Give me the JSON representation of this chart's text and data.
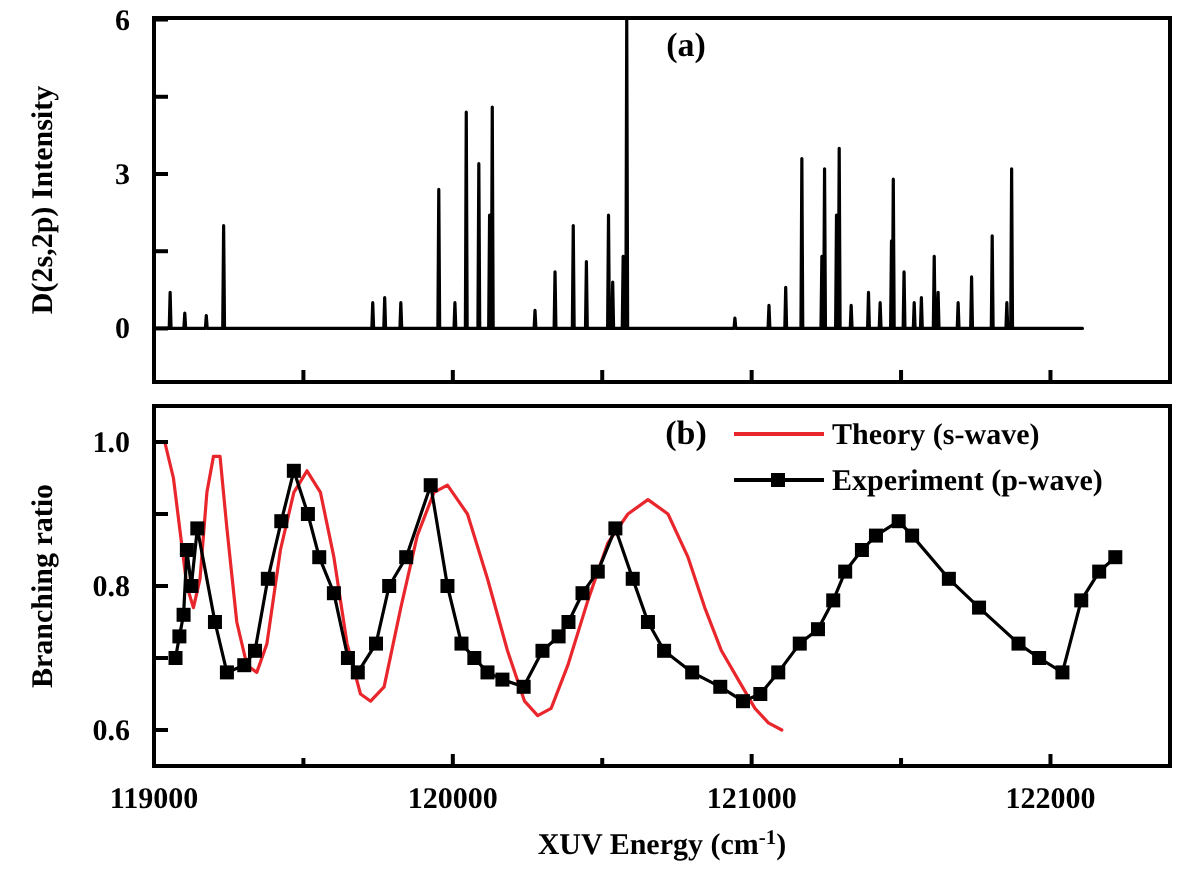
{
  "chart_data": [
    {
      "type": "line",
      "ylabel": "D(2s,2p) Intensity",
      "annotations": [
        "(a)"
      ],
      "xlim": [
        119000,
        122400
      ],
      "ylim": [
        -1.04,
        6.03
      ],
      "xticks": [
        {
          "value": 119000,
          "label": null
        },
        {
          "value": 119500,
          "label": null
        },
        {
          "value": 120000,
          "label": null
        },
        {
          "value": 120500,
          "label": null
        },
        {
          "value": 121000,
          "label": null
        },
        {
          "value": 121500,
          "label": null
        },
        {
          "value": 122000,
          "label": null
        }
      ],
      "yticks": [
        0,
        {
          "value": 1.5,
          "label": null
        },
        3,
        {
          "value": 4.5,
          "label": null
        },
        6
      ],
      "tick_labels": "y",
      "grid": false,
      "legend": false,
      "series": [
        {
          "color": "#000000",
          "marker": "none",
          "x": [
            119000,
            119051,
            119054,
            119057,
            119100,
            119103,
            119106,
            119172,
            119175,
            119178,
            119230,
            119233,
            119236,
            119729,
            119732,
            119735,
            119769,
            119772,
            119775,
            119823,
            119826,
            119829,
            119950,
            119953,
            119956,
            120004,
            120007,
            120010,
            120042,
            120045,
            120048,
            120084,
            120087,
            120090,
            120120,
            120123,
            120126,
            120129,
            120132,
            120135,
            120272,
            120275,
            120278,
            120339,
            120342,
            120345,
            120400,
            120403,
            120406,
            120444,
            120447,
            120450,
            120518,
            120521,
            120524,
            120532,
            120535,
            120538,
            120567,
            120570,
            120573,
            120579,
            120582,
            120585,
            120941,
            120944,
            120947,
            121055,
            121058,
            121061,
            121111,
            121114,
            121117,
            121165,
            121168,
            121171,
            121232,
            121235,
            121238,
            121241,
            121244,
            121247,
            121281,
            121284,
            121287,
            121290,
            121293,
            121296,
            121330,
            121333,
            121336,
            121388,
            121391,
            121394,
            121427,
            121430,
            121433,
            121465,
            121468,
            121471,
            121474,
            121477,
            121507,
            121510,
            121513,
            121541,
            121544,
            121547,
            121565,
            121568,
            121571,
            121608,
            121611,
            121614,
            121621,
            121624,
            121627,
            121688,
            121691,
            121694,
            121733,
            121736,
            121739,
            121802,
            121805,
            121808,
            121851,
            121854,
            121857,
            121867,
            121870,
            121873,
            122107
          ],
          "values": [
            0,
            0,
            0.7,
            0,
            0,
            0.3,
            0,
            0,
            0.25,
            0,
            0,
            2.0,
            0,
            0,
            0.5,
            0,
            0,
            0.6,
            0,
            0,
            0.5,
            0,
            0,
            2.7,
            0,
            0,
            0.5,
            0,
            0,
            4.2,
            0,
            0,
            3.2,
            0,
            0,
            2.2,
            0,
            0,
            4.3,
            0,
            0,
            0.35,
            0,
            0,
            1.1,
            0,
            0,
            2.0,
            0,
            0,
            1.3,
            0,
            0,
            2.2,
            0,
            0,
            0.9,
            0,
            0,
            1.4,
            0,
            0,
            6.0,
            0,
            0,
            0.2,
            0,
            0,
            0.45,
            0,
            0,
            0.8,
            0,
            0,
            3.3,
            0,
            0,
            1.4,
            0,
            0,
            3.1,
            0,
            0,
            2.2,
            0,
            0,
            3.5,
            0,
            0,
            0.45,
            0,
            0,
            0.7,
            0,
            0,
            0.5,
            0,
            0,
            1.7,
            0,
            2.9,
            0,
            0,
            1.1,
            0,
            0,
            0.5,
            0,
            0,
            0.6,
            0,
            0,
            1.4,
            0,
            0,
            0.7,
            0,
            0,
            0.5,
            0,
            0,
            1.0,
            0,
            0,
            1.8,
            0,
            0,
            0.5,
            0,
            0,
            3.1,
            0,
            0
          ]
        }
      ]
    },
    {
      "type": "line",
      "xlabel": "XUV Energy (cm$^{-1}$)",
      "ylabel": "Branching ratio",
      "annotations": [
        "(b)"
      ],
      "xlim": [
        119000,
        122400
      ],
      "ylim": [
        0.55,
        1.05
      ],
      "xticks": [
        119000,
        {
          "value": 119500,
          "label": null
        },
        120000,
        {
          "value": 120500,
          "label": null
        },
        121000,
        {
          "value": 121500,
          "label": null
        },
        122000
      ],
      "yticks": [
        0.6,
        {
          "value": 0.7,
          "label": null
        },
        0.8,
        {
          "value": 0.9,
          "label": null
        },
        {
          "value": 1.0,
          "label": "1.0"
        }
      ],
      "grid": false,
      "legend": "top right",
      "series": [
        {
          "name": "Theory (s-wave)",
          "color": "#e8262c",
          "marker": "none",
          "x": [
            119036,
            119065,
            119092,
            119110,
            119132,
            119154,
            119177,
            119199,
            119221,
            119244,
            119277,
            119311,
            119344,
            119378,
            119423,
            119468,
            119512,
            119557,
            119602,
            119646,
            119691,
            119725,
            119770,
            119826,
            119881,
            119937,
            119982,
            120049,
            120116,
            120183,
            120240,
            120284,
            120329,
            120385,
            120452,
            120519,
            120586,
            120653,
            120720,
            120787,
            120843,
            120899,
            120955,
            121011,
            121056,
            121101
          ],
          "values": [
            1.0,
            0.95,
            0.86,
            0.8,
            0.77,
            0.81,
            0.93,
            0.98,
            0.98,
            0.88,
            0.75,
            0.69,
            0.68,
            0.72,
            0.85,
            0.93,
            0.96,
            0.93,
            0.84,
            0.72,
            0.65,
            0.64,
            0.66,
            0.77,
            0.87,
            0.93,
            0.94,
            0.9,
            0.81,
            0.71,
            0.64,
            0.62,
            0.63,
            0.69,
            0.78,
            0.86,
            0.9,
            0.92,
            0.9,
            0.84,
            0.77,
            0.71,
            0.67,
            0.63,
            0.61,
            0.6
          ]
        },
        {
          "name": "Experiment (p-wave)",
          "color": "#000000",
          "marker": "square",
          "x": [
            119072,
            119085,
            119099,
            119110,
            119125,
            119145,
            119204,
            119244,
            119302,
            119338,
            119381,
            119426,
            119468,
            119515,
            119553,
            119602,
            119649,
            119682,
            119743,
            119787,
            119844,
            119926,
            119982,
            120029,
            120072,
            120116,
            120166,
            120237,
            120300,
            120354,
            120387,
            120434,
            120485,
            120544,
            120602,
            120653,
            120707,
            120801,
            120895,
            120971,
            121029,
            121089,
            121161,
            121222,
            121273,
            121313,
            121369,
            121416,
            121492,
            121537,
            121660,
            121761,
            121893,
            121962,
            122040,
            122103,
            122163,
            122217
          ],
          "values": [
            0.7,
            0.73,
            0.76,
            0.85,
            0.8,
            0.88,
            0.75,
            0.68,
            0.69,
            0.71,
            0.81,
            0.89,
            0.96,
            0.9,
            0.84,
            0.79,
            0.7,
            0.68,
            0.72,
            0.8,
            0.84,
            0.94,
            0.8,
            0.72,
            0.7,
            0.68,
            0.67,
            0.66,
            0.71,
            0.73,
            0.75,
            0.79,
            0.82,
            0.88,
            0.81,
            0.75,
            0.71,
            0.68,
            0.66,
            0.64,
            0.65,
            0.68,
            0.72,
            0.74,
            0.78,
            0.82,
            0.85,
            0.87,
            0.89,
            0.87,
            0.81,
            0.77,
            0.72,
            0.7,
            0.68,
            0.78,
            0.82,
            0.84
          ]
        }
      ]
    }
  ]
}
